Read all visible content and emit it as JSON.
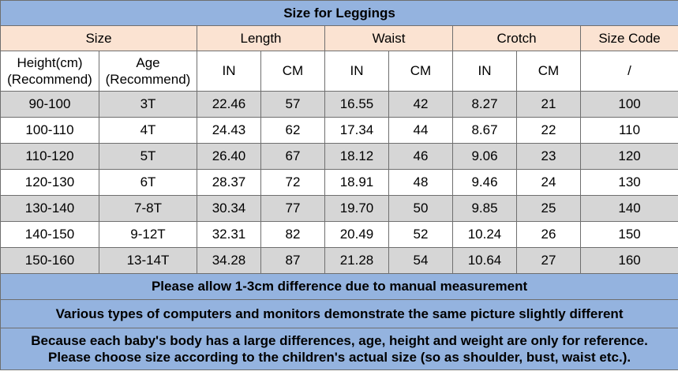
{
  "title": "Size for Leggings",
  "groups": {
    "size": "Size",
    "length": "Length",
    "waist": "Waist",
    "crotch": "Crotch",
    "size_code": "Size Code"
  },
  "subheaders": {
    "height_line1": "Height(cm)",
    "height_line2": "(Recommend)",
    "age_line1": "Age",
    "age_line2": "(Recommend)",
    "length_in": "IN",
    "length_cm": "CM",
    "waist_in": "IN",
    "waist_cm": "CM",
    "crotch_in": "IN",
    "crotch_cm": "CM",
    "code": "/"
  },
  "rows": [
    [
      "90-100",
      "3T",
      "22.46",
      "57",
      "16.55",
      "42",
      "8.27",
      "21",
      "100"
    ],
    [
      "100-110",
      "4T",
      "24.43",
      "62",
      "17.34",
      "44",
      "8.67",
      "22",
      "110"
    ],
    [
      "110-120",
      "5T",
      "26.40",
      "67",
      "18.12",
      "46",
      "9.06",
      "23",
      "120"
    ],
    [
      "120-130",
      "6T",
      "28.37",
      "72",
      "18.91",
      "48",
      "9.46",
      "24",
      "130"
    ],
    [
      "130-140",
      "7-8T",
      "30.34",
      "77",
      "19.70",
      "50",
      "9.85",
      "25",
      "140"
    ],
    [
      "140-150",
      "9-12T",
      "32.31",
      "82",
      "20.49",
      "52",
      "10.24",
      "26",
      "150"
    ],
    [
      "150-160",
      "13-14T",
      "34.28",
      "87",
      "21.28",
      "54",
      "10.64",
      "27",
      "160"
    ]
  ],
  "notes": {
    "allow": "Please allow 1-3cm difference due to manual measurement",
    "monitors": "Various types of computers and monitors demonstrate the same picture slightly  different",
    "reference_line1": "Because each baby's body has a large differences, age, height and weight are only for reference.",
    "reference_line2": "Please choose size according to the children's actual size (so as shoulder, bust, waist etc.)."
  },
  "colors": {
    "title_bg": "#94b3df",
    "header_bg": "#fbe3d2",
    "row_shade": "#d6d6d6",
    "row_plain": "#ffffff",
    "border": "#6f6f6f"
  }
}
